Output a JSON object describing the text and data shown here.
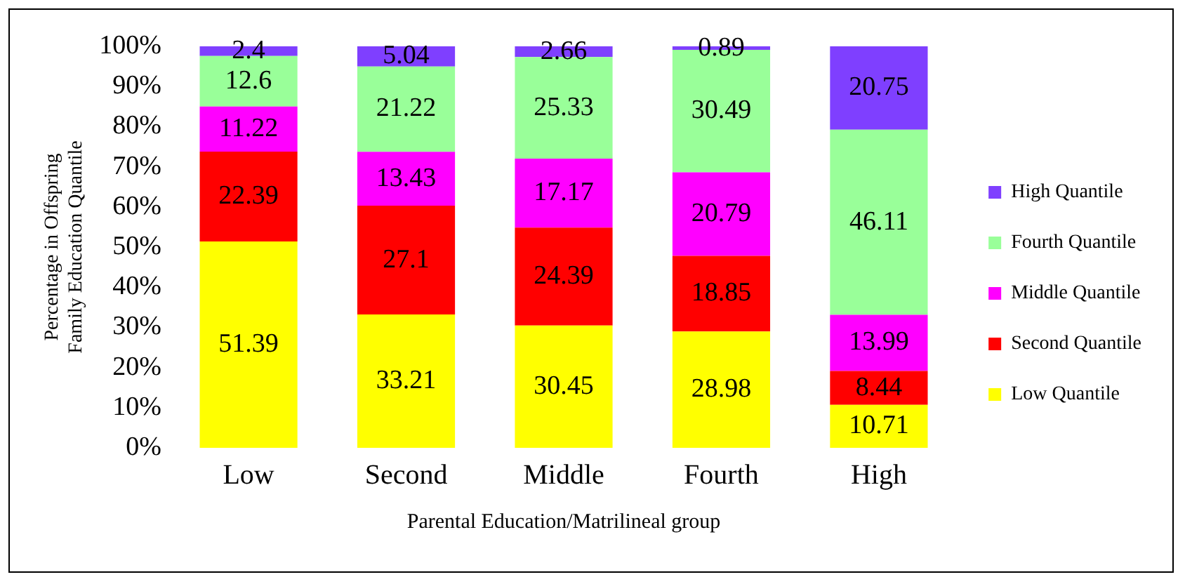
{
  "chart_data": {
    "type": "bar",
    "stacked": true,
    "xlabel": "Parental Education/Matrilineal group",
    "ylabel": "Percentage in Offspring Family Education Quantile",
    "categories": [
      "Low",
      "Second",
      "Middle",
      "Fourth",
      "High"
    ],
    "series": [
      {
        "name": "Low Quantile",
        "color": "#ffff00",
        "values": [
          51.39,
          33.21,
          30.45,
          28.98,
          10.71
        ]
      },
      {
        "name": "Second Quantile",
        "color": "#ff0000",
        "values": [
          22.39,
          27.1,
          24.39,
          18.85,
          8.44
        ]
      },
      {
        "name": "Middle Quantile",
        "color": "#ff00ff",
        "values": [
          11.22,
          13.43,
          17.17,
          20.79,
          13.99
        ]
      },
      {
        "name": "Fourth Quantile",
        "color": "#99ff99",
        "values": [
          12.6,
          21.22,
          25.33,
          30.49,
          46.11
        ]
      },
      {
        "name": "High Quantile",
        "color": "#7f3fff",
        "values": [
          2.4,
          5.04,
          2.66,
          0.89,
          20.75
        ]
      }
    ],
    "ylim": [
      0,
      100
    ],
    "yticks": [
      {
        "value": 0,
        "label": "0%"
      },
      {
        "value": 10,
        "label": "10%"
      },
      {
        "value": 20,
        "label": "20%"
      },
      {
        "value": 30,
        "label": "30%"
      },
      {
        "value": 40,
        "label": "40%"
      },
      {
        "value": 50,
        "label": "50%"
      },
      {
        "value": 60,
        "label": "60%"
      },
      {
        "value": 70,
        "label": "70%"
      },
      {
        "value": 80,
        "label": "80%"
      },
      {
        "value": 90,
        "label": "90%"
      },
      {
        "value": 100,
        "label": "100%"
      }
    ],
    "grid": false,
    "legend": "right",
    "data_labels": true
  }
}
